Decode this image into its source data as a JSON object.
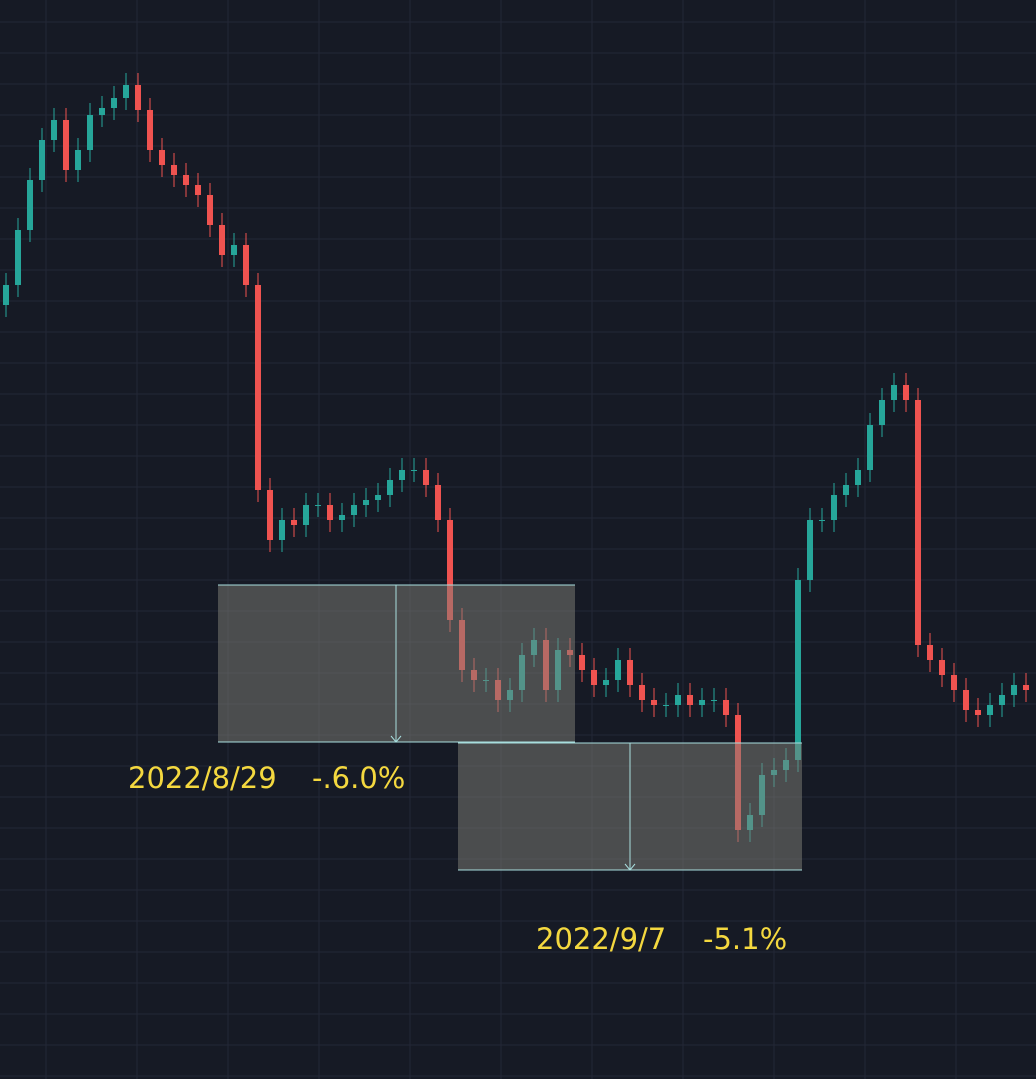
{
  "chart_data": {
    "type": "candlestick",
    "up_color": "#26a69a",
    "down_color": "#ef5350",
    "ylim": [
      0,
      1079
    ],
    "open": [
      774,
      794,
      849,
      899,
      939,
      959,
      909,
      929,
      964,
      971,
      981,
      994,
      969,
      929,
      914,
      904,
      894,
      884,
      854,
      824,
      834,
      794,
      589,
      539,
      559,
      554,
      574,
      574,
      559,
      564,
      574,
      579,
      584,
      599,
      609,
      609,
      594,
      559,
      459,
      409,
      399,
      399,
      379,
      389,
      424,
      439,
      389,
      429,
      424,
      409,
      394,
      399,
      419,
      394,
      379,
      374,
      374,
      384,
      374,
      379,
      379,
      364,
      249,
      264,
      304,
      309,
      319,
      499,
      559,
      559,
      584,
      594,
      609,
      654,
      679,
      694,
      679,
      434,
      419,
      404,
      389,
      369,
      364,
      374,
      384,
      394
    ],
    "high": [
      806,
      861,
      911,
      951,
      971,
      971,
      941,
      976,
      983,
      993,
      1006,
      1006,
      981,
      941,
      926,
      916,
      906,
      896,
      866,
      846,
      846,
      806,
      601,
      571,
      571,
      586,
      586,
      586,
      576,
      586,
      591,
      596,
      611,
      621,
      621,
      621,
      606,
      571,
      471,
      421,
      411,
      411,
      401,
      436,
      451,
      451,
      441,
      441,
      436,
      421,
      411,
      431,
      431,
      406,
      391,
      386,
      396,
      396,
      391,
      391,
      391,
      376,
      276,
      316,
      321,
      331,
      511,
      571,
      571,
      596,
      606,
      621,
      666,
      691,
      706,
      706,
      691,
      446,
      431,
      416,
      401,
      381,
      386,
      396,
      406,
      406
    ],
    "low": [
      762,
      782,
      837,
      887,
      927,
      897,
      897,
      917,
      952,
      959,
      969,
      957,
      917,
      902,
      892,
      882,
      872,
      842,
      812,
      812,
      782,
      577,
      527,
      527,
      542,
      542,
      562,
      547,
      547,
      552,
      562,
      567,
      572,
      587,
      597,
      582,
      547,
      447,
      397,
      387,
      387,
      367,
      367,
      377,
      412,
      377,
      377,
      412,
      397,
      382,
      382,
      387,
      382,
      367,
      362,
      362,
      362,
      362,
      362,
      367,
      352,
      237,
      237,
      252,
      292,
      297,
      307,
      487,
      547,
      547,
      572,
      582,
      597,
      642,
      667,
      667,
      422,
      407,
      392,
      377,
      357,
      352,
      352,
      362,
      372,
      377
    ],
    "close": [
      794,
      849,
      899,
      939,
      959,
      909,
      929,
      964,
      971,
      981,
      994,
      969,
      929,
      914,
      904,
      894,
      884,
      854,
      824,
      834,
      794,
      589,
      539,
      559,
      554,
      574,
      574,
      559,
      564,
      574,
      579,
      584,
      599,
      609,
      609,
      594,
      559,
      459,
      409,
      399,
      399,
      379,
      389,
      424,
      439,
      389,
      429,
      424,
      409,
      394,
      399,
      419,
      394,
      379,
      374,
      374,
      384,
      374,
      379,
      379,
      364,
      249,
      264,
      304,
      309,
      319,
      499,
      559,
      559,
      584,
      594,
      609,
      654,
      679,
      694,
      679,
      434,
      419,
      404,
      389,
      369,
      364,
      374,
      384,
      394,
      389
    ],
    "annotations": [
      {
        "date": "2022/8/29",
        "change": "-.6.0%"
      },
      {
        "date": "2022/9/7",
        "change": "-5.1%"
      }
    ]
  }
}
